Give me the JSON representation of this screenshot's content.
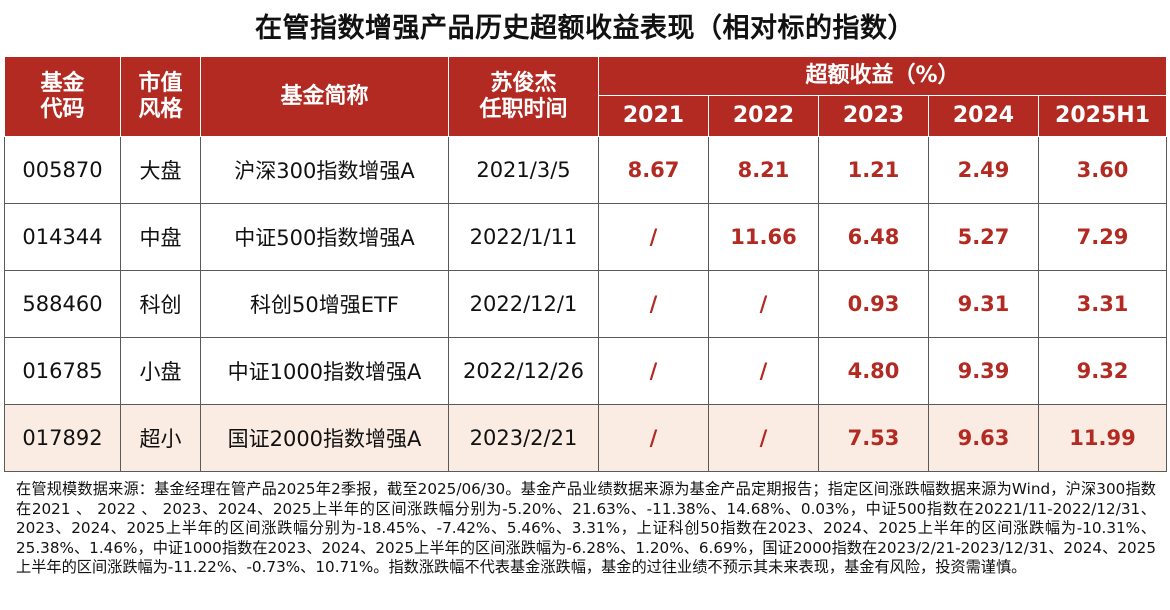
{
  "title": "在管指数增强产品历史超额收益表现（相对标的指数）",
  "table": {
    "headers": {
      "code": "基金代码",
      "code_line1": "基金",
      "code_line2": "代码",
      "style_line1": "市值",
      "style_line2": "风格",
      "name": "基金简称",
      "tenure_line1": "苏俊杰",
      "tenure_line2": "任职时间",
      "excess": "超额收益（%）",
      "years": [
        "2021",
        "2022",
        "2023",
        "2024",
        "2025H1"
      ]
    },
    "rows": [
      {
        "code": "005870",
        "style": "大盘",
        "name": "沪深300指数增强A",
        "date": "2021/3/5",
        "r2021": "8.67",
        "r2022": "8.21",
        "r2023": "1.21",
        "r2024": "2.49",
        "r2025": "3.60"
      },
      {
        "code": "014344",
        "style": "中盘",
        "name": "中证500指数增强A",
        "date": "2022/1/11",
        "r2021": "/",
        "r2022": "11.66",
        "r2023": "6.48",
        "r2024": "5.27",
        "r2025": "7.29"
      },
      {
        "code": "588460",
        "style": "科创",
        "name": "科创50增强ETF",
        "date": "2022/12/1",
        "r2021": "/",
        "r2022": "/",
        "r2023": "0.93",
        "r2024": "9.31",
        "r2025": "3.31"
      },
      {
        "code": "016785",
        "style": "小盘",
        "name": "中证1000指数增强A",
        "date": "2022/12/26",
        "r2021": "/",
        "r2022": "/",
        "r2023": "4.80",
        "r2024": "9.39",
        "r2025": "9.32"
      },
      {
        "code": "017892",
        "style": "超小",
        "name": "国证2000指数增强A",
        "date": "2023/2/21",
        "r2021": "/",
        "r2022": "/",
        "r2023": "7.53",
        "r2024": "9.63",
        "r2025": "11.99"
      }
    ]
  },
  "colors": {
    "header_bg": "#b22a22",
    "accent_text": "#b22a22",
    "highlight_row_bg": "#fbece3"
  },
  "footnote": "在管规模数据来源：基金经理在管产品2025年2季报，截至2025/06/30。基金产品业绩数据来源为基金产品定期报告；指定区间涨跌幅数据来源为Wind，沪深300指数在2021 、 2022 、 2023、2024、2025上半年的区间涨跌幅分别为-5.20%、21.63%、-11.38%、14.68%、0.03%，中证500指数在20221/11-2022/12/31、2023、2024、2025上半年的区间涨跌幅分别为-18.45%、-7.42%、5.46%、3.31%，上证科创50指数在2023、2024、2025上半年的区间涨跌幅为-10.31%、25.38%、1.46%，中证1000指数在2023、2024、2025上半年的区间涨跌幅为-6.28%、1.20%、6.69%，国证2000指数在2023/2/21-2023/12/31、2024、2025上半年的区间涨跌幅为-11.22%、-0.73%、10.71%。指数涨跌幅不代表基金涨跌幅，基金的过往业绩不预示其未来表现，基金有风险，投资需谨慎。"
}
